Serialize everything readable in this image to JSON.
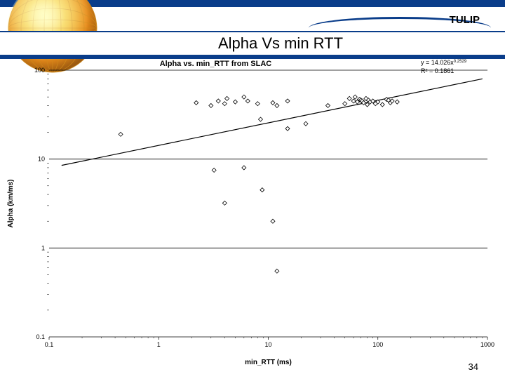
{
  "brand": {
    "label": "TULIP"
  },
  "slide": {
    "title": "Alpha Vs min RTT",
    "page_number": "34"
  },
  "chart": {
    "type": "scatter",
    "title": "Alpha vs. min_RTT from SLAC",
    "xlabel": "min_RTT (ms)",
    "ylabel": "Alpha (km/ms)",
    "equation": "y = 14.026x",
    "equation_exp": "0.2529",
    "r2": "R² = 0.1861",
    "xscale": "log",
    "yscale": "log",
    "xlim": [
      0.1,
      1000
    ],
    "ylim": [
      0.1,
      100
    ],
    "xtick_labels": [
      "0.1",
      "1",
      "10",
      "100",
      "1000"
    ],
    "ytick_labels": [
      "0.1",
      "1",
      "10",
      "100"
    ],
    "title_fontsize": 11,
    "label_fontsize": 10,
    "tick_fontsize": 9,
    "background_color": "#ffffff",
    "marker": {
      "shape": "diamond",
      "size": 6,
      "fill": "#ffffff",
      "stroke": "#000000",
      "stroke_width": 0.8
    },
    "fit_line": {
      "color": "#000000",
      "width": 1.2,
      "x1": 0.13,
      "y1": 8.5,
      "x2": 900,
      "y2": 80
    },
    "points": [
      [
        0.45,
        19
      ],
      [
        2.2,
        43
      ],
      [
        3.0,
        40
      ],
      [
        3.5,
        45
      ],
      [
        4.0,
        42
      ],
      [
        4.2,
        48
      ],
      [
        5.0,
        44
      ],
      [
        6.0,
        50
      ],
      [
        6.5,
        45
      ],
      [
        8.0,
        42
      ],
      [
        8.5,
        28
      ],
      [
        11,
        43
      ],
      [
        12,
        40
      ],
      [
        15,
        45
      ],
      [
        22,
        25
      ],
      [
        35,
        40
      ],
      [
        50,
        42
      ],
      [
        55,
        48
      ],
      [
        60,
        45
      ],
      [
        62,
        50
      ],
      [
        65,
        44
      ],
      [
        68,
        47
      ],
      [
        70,
        46
      ],
      [
        72,
        45
      ],
      [
        74,
        43
      ],
      [
        78,
        48
      ],
      [
        80,
        41
      ],
      [
        82,
        46
      ],
      [
        85,
        44
      ],
      [
        90,
        45
      ],
      [
        95,
        42
      ],
      [
        100,
        44
      ],
      [
        110,
        41
      ],
      [
        120,
        47
      ],
      [
        125,
        46
      ],
      [
        130,
        43
      ],
      [
        135,
        45
      ],
      [
        150,
        44
      ],
      [
        3.2,
        7.5
      ],
      [
        8.8,
        4.5
      ],
      [
        4.0,
        3.2
      ],
      [
        11,
        2.0
      ],
      [
        12,
        0.55
      ],
      [
        6.0,
        8.0
      ],
      [
        15,
        22
      ]
    ]
  },
  "colors": {
    "brand_blue": "#0a3d8a",
    "globe_yellow": "#f4c430",
    "globe_orange": "#e88b1a",
    "white": "#ffffff"
  }
}
